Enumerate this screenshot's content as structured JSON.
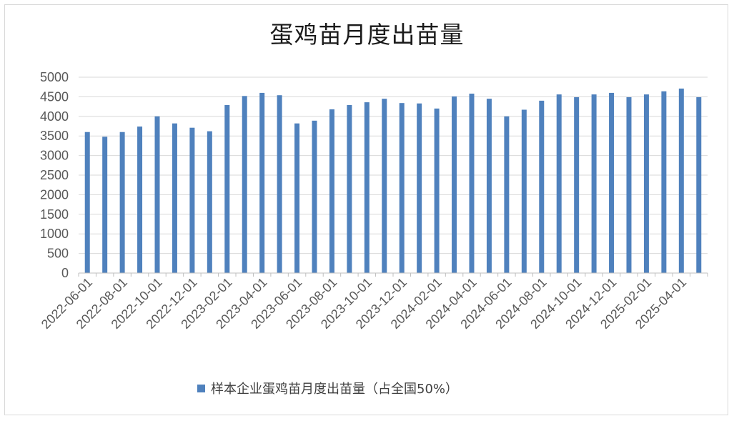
{
  "chart_data": {
    "type": "bar",
    "title": "蛋鸡苗月度出苗量",
    "categories": [
      "2022-06-01",
      "2022-07-01",
      "2022-08-01",
      "2022-09-01",
      "2022-10-01",
      "2022-11-01",
      "2022-12-01",
      "2023-01-01",
      "2023-02-01",
      "2023-03-01",
      "2023-04-01",
      "2023-05-01",
      "2023-06-01",
      "2023-07-01",
      "2023-08-01",
      "2023-09-01",
      "2023-10-01",
      "2023-11-01",
      "2023-12-01",
      "2024-01-01",
      "2024-02-01",
      "2024-03-01",
      "2024-04-01",
      "2024-05-01",
      "2024-06-01",
      "2024-07-01",
      "2024-08-01",
      "2024-09-01",
      "2024-10-01",
      "2024-11-01",
      "2024-12-01",
      "2025-01-01",
      "2025-02-01",
      "2025-03-01",
      "2025-04-01",
      "2025-05-01"
    ],
    "x_tick_labels": [
      "2022-06-01",
      "2022-08-01",
      "2022-10-01",
      "2022-12-01",
      "2023-02-01",
      "2023-04-01",
      "2023-06-01",
      "2023-08-01",
      "2023-10-01",
      "2023-12-01",
      "2024-02-01",
      "2024-04-01",
      "2024-06-01",
      "2024-08-01",
      "2024-10-01",
      "2024-12-01",
      "2025-02-01",
      "2025-04-01"
    ],
    "series": [
      {
        "name": "样本企业蛋鸡苗月度出苗量（占全国50%）",
        "color": "#4f81bd",
        "values": [
          3600,
          3480,
          3600,
          3740,
          4000,
          3820,
          3710,
          3620,
          4290,
          4520,
          4600,
          4540,
          3820,
          3890,
          4180,
          4290,
          4360,
          4450,
          4340,
          4330,
          4200,
          4510,
          4580,
          4450,
          4000,
          4170,
          4400,
          4560,
          4490,
          4560,
          4600,
          4490,
          4560,
          4640,
          4710,
          4490
        ]
      }
    ],
    "y_ticks": [
      0,
      500,
      1000,
      1500,
      2000,
      2500,
      3000,
      3500,
      4000,
      4500,
      5000
    ],
    "ylim": [
      0,
      5000
    ],
    "grid": true,
    "legend_position": "bottom"
  }
}
